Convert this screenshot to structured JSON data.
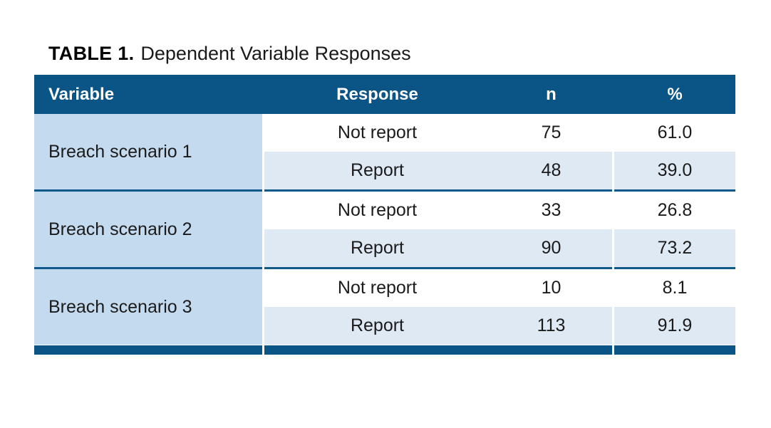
{
  "title": {
    "label": "TABLE 1.",
    "text": "Dependent Variable Responses"
  },
  "table": {
    "columns": [
      "Variable",
      "Response",
      "n",
      "%"
    ],
    "groups": [
      {
        "variable": "Breach scenario 1",
        "rows": [
          {
            "response": "Not report",
            "n": "75",
            "pct": "61.0"
          },
          {
            "response": "Report",
            "n": "48",
            "pct": "39.0"
          }
        ]
      },
      {
        "variable": "Breach scenario 2",
        "rows": [
          {
            "response": "Not report",
            "n": "33",
            "pct": "26.8"
          },
          {
            "response": "Report",
            "n": "90",
            "pct": "73.2"
          }
        ]
      },
      {
        "variable": "Breach scenario 3",
        "rows": [
          {
            "response": "Not report",
            "n": "10",
            "pct": "8.1"
          },
          {
            "response": "Report",
            "n": "113",
            "pct": "91.9"
          }
        ]
      }
    ]
  },
  "colors": {
    "header_bg": "#0b5586",
    "header_text": "#ffffff",
    "variable_cell_bg": "#c4daef",
    "alt_row_bg": "#dfe9f4",
    "separator": "#0f5a8b",
    "body_text": "#1b1b1b"
  }
}
